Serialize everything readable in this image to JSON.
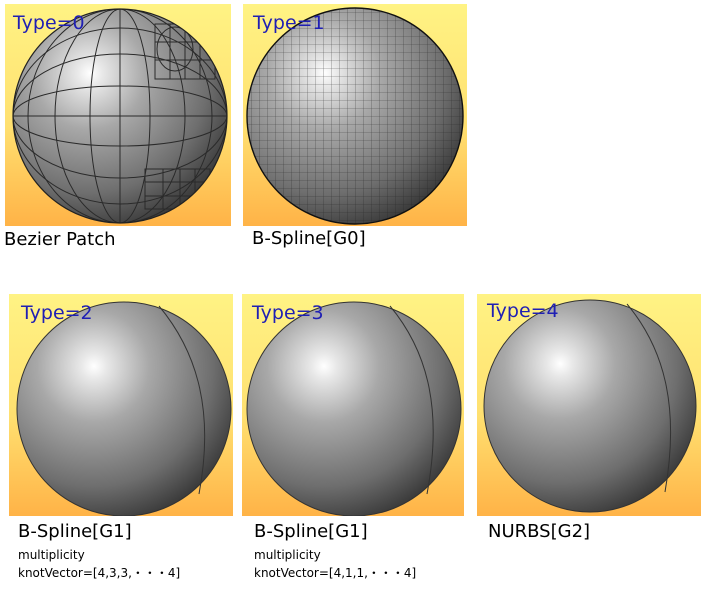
{
  "figures": [
    {
      "type_label": "Type=0",
      "caption": "Bezier Patch",
      "details": []
    },
    {
      "type_label": "Type=1",
      "caption": "B-Spline[G0]",
      "details": []
    },
    {
      "type_label": "Type=2",
      "caption": "B-Spline[G1]",
      "details": [
        "multiplicity",
        "knotVector=[4,3,3,・・・4]"
      ]
    },
    {
      "type_label": "Type=3",
      "caption": "B-Spline[G1]",
      "details": [
        "multiplicity",
        "knotVector=[4,1,1,・・・4]"
      ]
    },
    {
      "type_label": "Type=4",
      "caption": "NURBS[G2]",
      "details": []
    }
  ],
  "colors": {
    "background_top": "#fff384",
    "background_bottom": "#ffb347",
    "label_color": "#1f1fb4",
    "sphere_light": "#ffffff",
    "sphere_dark": "#3a3a3a"
  }
}
